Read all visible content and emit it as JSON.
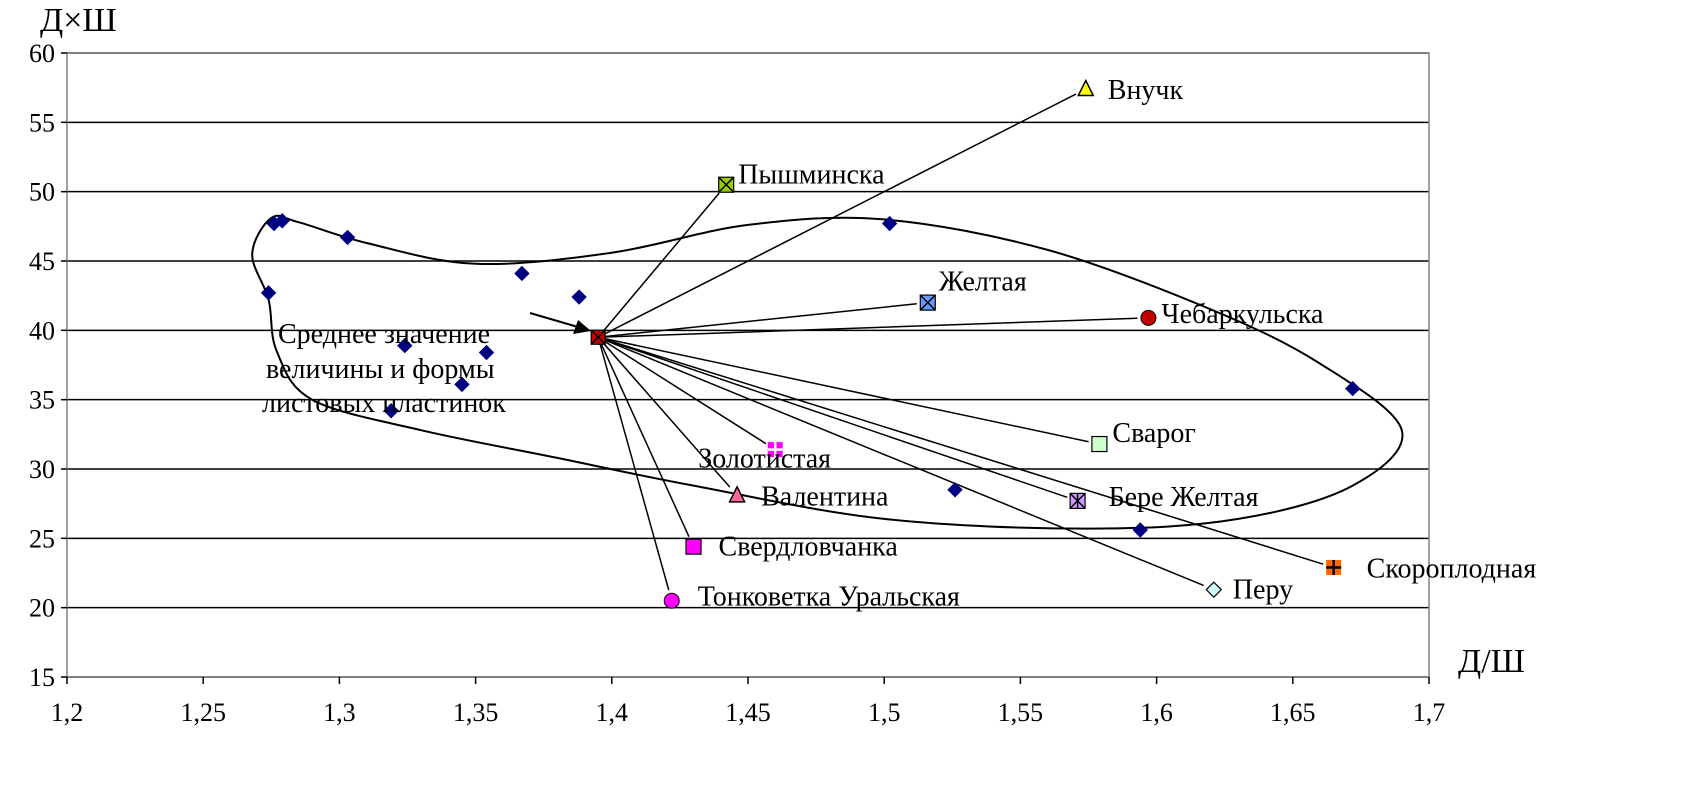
{
  "chart_data": {
    "type": "scatter",
    "xlabel": "Д/Ш",
    "ylabel": "Д×Ш",
    "xlim": [
      1.2,
      1.7
    ],
    "ylim": [
      15,
      60
    ],
    "x_ticks": [
      "1,2",
      "1,25",
      "1,3",
      "1,35",
      "1,4",
      "1,45",
      "1,5",
      "1,55",
      "1,6",
      "1,65",
      "1,7"
    ],
    "y_ticks": [
      "15",
      "20",
      "25",
      "30",
      "35",
      "40",
      "45",
      "50",
      "55",
      "60"
    ],
    "grid": "horizontal",
    "annotation": {
      "lines": [
        "Среднее значение",
        "величины  и формы",
        "листовых  пластинок"
      ],
      "points_to": {
        "x": 1.395,
        "y": 39.5
      }
    },
    "mean_point": {
      "x": 1.395,
      "y": 39.5,
      "color": "#c00000"
    },
    "background_points": [
      {
        "x": 1.276,
        "y": 47.7
      },
      {
        "x": 1.279,
        "y": 47.9
      },
      {
        "x": 1.303,
        "y": 46.7
      },
      {
        "x": 1.367,
        "y": 44.1
      },
      {
        "x": 1.388,
        "y": 42.4
      },
      {
        "x": 1.274,
        "y": 42.7
      },
      {
        "x": 1.324,
        "y": 38.9
      },
      {
        "x": 1.354,
        "y": 38.4
      },
      {
        "x": 1.345,
        "y": 36.1
      },
      {
        "x": 1.319,
        "y": 34.2
      },
      {
        "x": 1.502,
        "y": 47.7
      },
      {
        "x": 1.526,
        "y": 28.5
      },
      {
        "x": 1.594,
        "y": 25.6
      },
      {
        "x": 1.672,
        "y": 35.8
      }
    ],
    "varieties": [
      {
        "name": "Внучк",
        "x": 1.574,
        "y": 57.4,
        "marker": "triangle",
        "color": "#ffff00"
      },
      {
        "name": "Пышминска",
        "x": 1.442,
        "y": 50.5,
        "marker": "square-x",
        "color": "#99cc00"
      },
      {
        "name": "Желтая",
        "x": 1.516,
        "y": 42.0,
        "marker": "square-x",
        "color": "#6699ff"
      },
      {
        "name": "Чебаркульска",
        "x": 1.597,
        "y": 40.9,
        "marker": "circle",
        "color": "#c00000"
      },
      {
        "name": "Сварог",
        "x": 1.579,
        "y": 31.8,
        "marker": "square",
        "color": "#ccffcc"
      },
      {
        "name": "Золотистая",
        "x": 1.46,
        "y": 31.4,
        "marker": "square-plus",
        "color": "#ff00ff"
      },
      {
        "name": "Валентина",
        "x": 1.446,
        "y": 28.1,
        "marker": "triangle",
        "color": "#ff6699"
      },
      {
        "name": "Бере Желтая",
        "x": 1.571,
        "y": 27.7,
        "marker": "square-star",
        "color": "#cc99ff"
      },
      {
        "name": "Свердловчанка",
        "x": 1.43,
        "y": 24.4,
        "marker": "square",
        "color": "#ff00ff"
      },
      {
        "name": "Скороплодная",
        "x": 1.665,
        "y": 22.9,
        "marker": "square-plus",
        "color": "#ff6600"
      },
      {
        "name": "Перу",
        "x": 1.621,
        "y": 21.3,
        "marker": "diamond",
        "color": "#ccffff"
      },
      {
        "name": "Тонковетка  Уральская",
        "x": 1.422,
        "y": 20.5,
        "marker": "circle",
        "color": "#ff00ff"
      }
    ],
    "colors": {
      "background_point": "#000080",
      "lines": "#000000"
    }
  }
}
